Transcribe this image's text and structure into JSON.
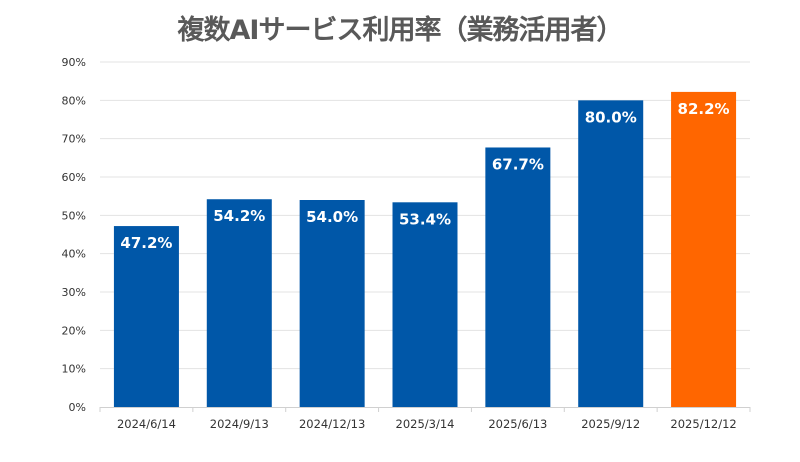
{
  "chart_data": {
    "type": "bar",
    "title": "複数AIサービス利用率（業務活用者）",
    "categories": [
      "2024/6/14",
      "2024/9/13",
      "2024/12/13",
      "2025/3/14",
      "2025/6/13",
      "2025/9/12",
      "2025/12/12"
    ],
    "values": [
      47.2,
      54.2,
      54.0,
      53.4,
      67.7,
      80.0,
      82.2
    ],
    "data_labels": [
      "47.2%",
      "54.2%",
      "54.0%",
      "53.4%",
      "67.7%",
      "80.0%",
      "82.2%"
    ],
    "ylim": [
      0,
      90
    ],
    "yticks": [
      "0%",
      "10%",
      "20%",
      "30%",
      "40%",
      "50%",
      "60%",
      "70%",
      "80%",
      "90%"
    ],
    "grid": true,
    "colors": {
      "default": "#0057A8",
      "highlight": "#FF6600",
      "highlight_index": 6
    }
  }
}
